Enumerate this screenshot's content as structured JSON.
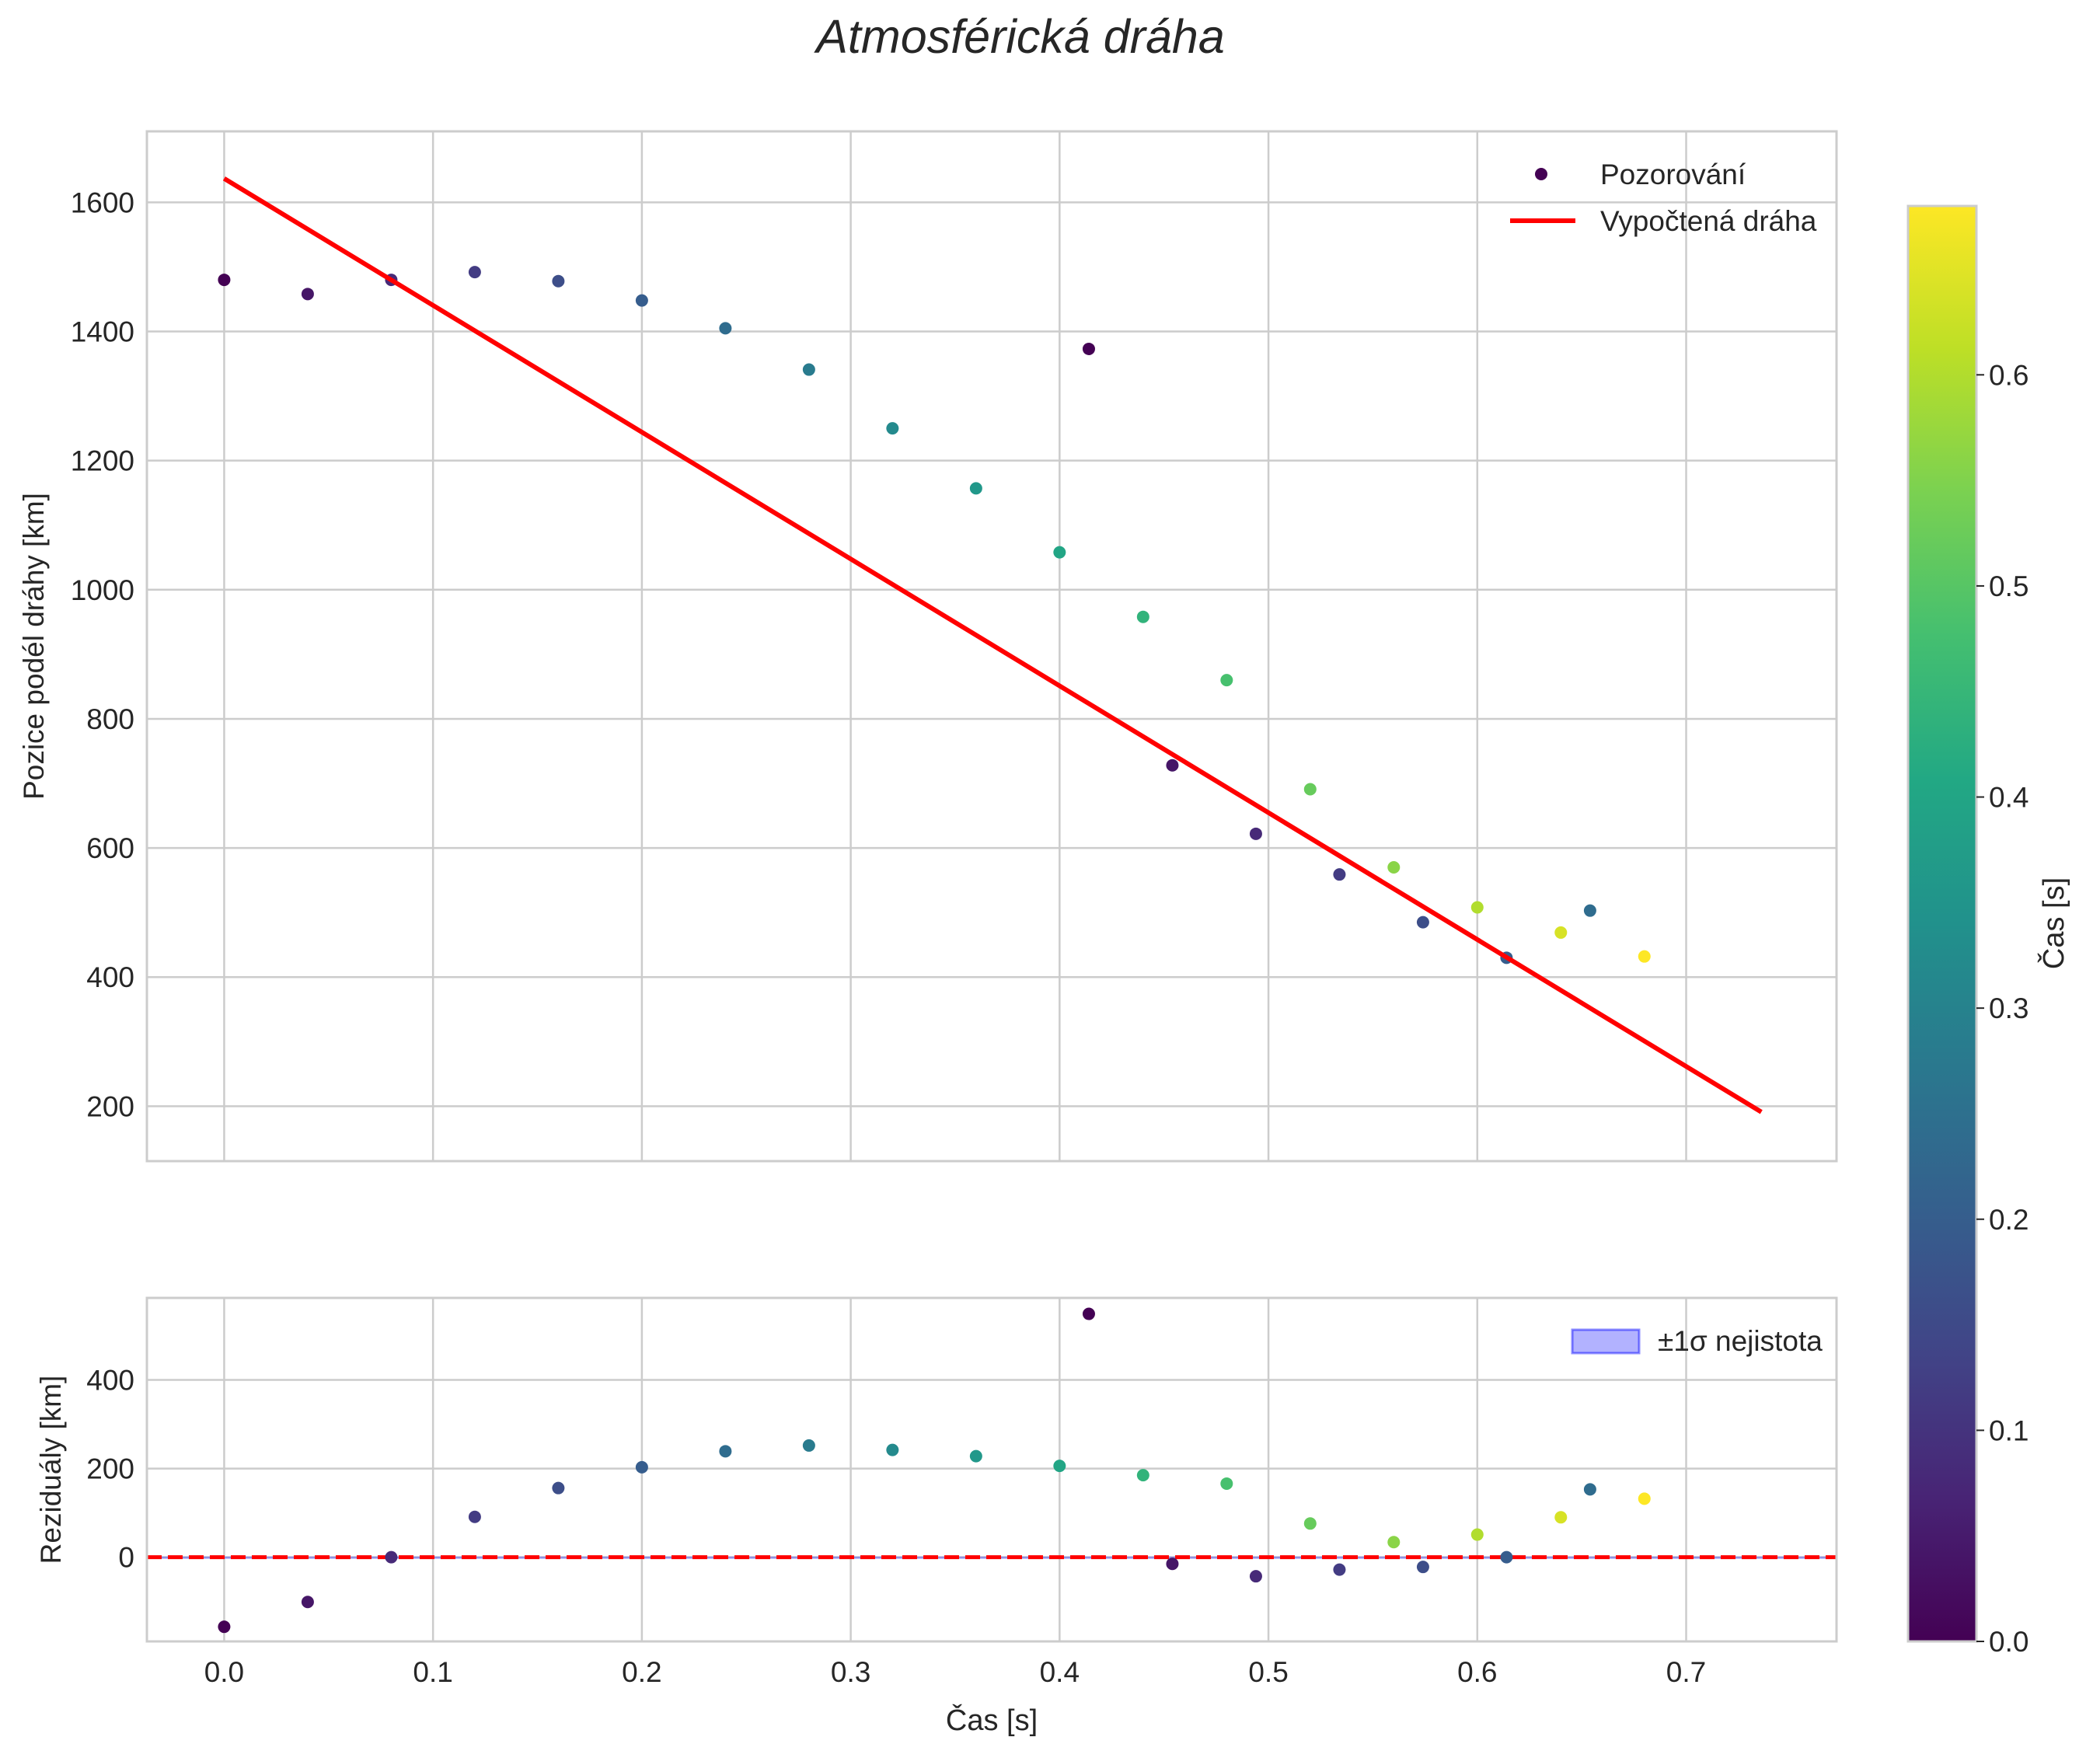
{
  "figure": {
    "title": "Atmosférická dráha"
  },
  "chart_data": [
    {
      "type": "scatter",
      "name": "trajectory",
      "ylabel": "Pozice podél dráhy [km]",
      "xlabel": "",
      "xlim": [
        -0.037,
        0.772
      ],
      "ylim": [
        115,
        1710
      ],
      "x_ticks": [
        0.0,
        0.1,
        0.2,
        0.3,
        0.4,
        0.5,
        0.6,
        0.7
      ],
      "y_ticks": [
        200,
        400,
        600,
        800,
        1000,
        1200,
        1400,
        1600
      ],
      "y_tick_labels": [
        "200",
        "400",
        "600",
        "800",
        "1000",
        "1200",
        "1400",
        "1600"
      ],
      "grid": true,
      "legend_position": "top-right",
      "legend": [
        {
          "label": "Pozorování",
          "kind": "marker",
          "color": "#440154"
        },
        {
          "label": "Vypočtená dráha",
          "kind": "line",
          "color": "#ff0000"
        }
      ],
      "series": [
        {
          "name": "Pozorování",
          "kind": "scatter",
          "colormap": "viridis",
          "points": [
            {
              "t": 0.0,
              "y": 1480,
              "c": 0.0
            },
            {
              "t": 0.04,
              "y": 1458,
              "c": 0.04
            },
            {
              "t": 0.08,
              "y": 1480,
              "c": 0.08
            },
            {
              "t": 0.12,
              "y": 1492,
              "c": 0.12
            },
            {
              "t": 0.16,
              "y": 1478,
              "c": 0.16
            },
            {
              "t": 0.2,
              "y": 1448,
              "c": 0.2
            },
            {
              "t": 0.24,
              "y": 1405,
              "c": 0.24
            },
            {
              "t": 0.28,
              "y": 1341,
              "c": 0.28
            },
            {
              "t": 0.32,
              "y": 1250,
              "c": 0.32
            },
            {
              "t": 0.36,
              "y": 1157,
              "c": 0.36
            },
            {
              "t": 0.4,
              "y": 1058,
              "c": 0.4
            },
            {
              "t": 0.44,
              "y": 958,
              "c": 0.44
            },
            {
              "t": 0.48,
              "y": 860,
              "c": 0.48
            },
            {
              "t": 0.52,
              "y": 691,
              "c": 0.52
            },
            {
              "t": 0.56,
              "y": 570,
              "c": 0.56
            },
            {
              "t": 0.6,
              "y": 508,
              "c": 0.6
            },
            {
              "t": 0.64,
              "y": 469,
              "c": 0.64
            },
            {
              "t": 0.68,
              "y": 432,
              "c": 0.68
            },
            {
              "t": 0.414,
              "y": 1373,
              "c": 0.0
            },
            {
              "t": 0.454,
              "y": 728,
              "c": 0.04
            },
            {
              "t": 0.494,
              "y": 622,
              "c": 0.08
            },
            {
              "t": 0.534,
              "y": 559,
              "c": 0.12
            },
            {
              "t": 0.574,
              "y": 485,
              "c": 0.16
            },
            {
              "t": 0.614,
              "y": 430,
              "c": 0.2
            },
            {
              "t": 0.654,
              "y": 503,
              "c": 0.24
            }
          ]
        },
        {
          "name": "Vypočtená dráha",
          "kind": "line",
          "color": "#ff0000",
          "x": [
            0.0,
            0.736
          ],
          "y": [
            1637,
            191
          ]
        }
      ]
    },
    {
      "type": "scatter",
      "name": "residuals",
      "ylabel": "Reziduály [km]",
      "xlabel": "Čas [s]",
      "xlim": [
        -0.037,
        0.772
      ],
      "ylim": [
        -190,
        585
      ],
      "x_ticks": [
        0.0,
        0.1,
        0.2,
        0.3,
        0.4,
        0.5,
        0.6,
        0.7
      ],
      "x_tick_labels": [
        "0.0",
        "0.1",
        "0.2",
        "0.3",
        "0.4",
        "0.5",
        "0.6",
        "0.7"
      ],
      "y_ticks": [
        0,
        200,
        400
      ],
      "y_tick_labels": [
        "0",
        "200",
        "400"
      ],
      "grid": true,
      "legend_position": "top-right",
      "legend": [
        {
          "label": "±1σ nejistota",
          "kind": "patch",
          "color": "#0000ff"
        }
      ],
      "reference_line": {
        "y": 0,
        "style": "dashed",
        "color": "#ff0000"
      },
      "uncertainty_band": 1.5,
      "series": [
        {
          "name": "Reziduály",
          "kind": "scatter",
          "colormap": "viridis",
          "points": [
            {
              "t": 0.0,
              "y": -157,
              "c": 0.0
            },
            {
              "t": 0.04,
              "y": -101,
              "c": 0.04
            },
            {
              "t": 0.08,
              "y": 0,
              "c": 0.08
            },
            {
              "t": 0.12,
              "y": 91,
              "c": 0.12
            },
            {
              "t": 0.16,
              "y": 156,
              "c": 0.16
            },
            {
              "t": 0.2,
              "y": 203,
              "c": 0.2
            },
            {
              "t": 0.24,
              "y": 239,
              "c": 0.24
            },
            {
              "t": 0.28,
              "y": 252,
              "c": 0.28
            },
            {
              "t": 0.32,
              "y": 242,
              "c": 0.32
            },
            {
              "t": 0.36,
              "y": 228,
              "c": 0.36
            },
            {
              "t": 0.4,
              "y": 206,
              "c": 0.4
            },
            {
              "t": 0.44,
              "y": 185,
              "c": 0.44
            },
            {
              "t": 0.48,
              "y": 166,
              "c": 0.48
            },
            {
              "t": 0.52,
              "y": 76,
              "c": 0.52
            },
            {
              "t": 0.56,
              "y": 34,
              "c": 0.56
            },
            {
              "t": 0.6,
              "y": 51,
              "c": 0.6
            },
            {
              "t": 0.64,
              "y": 90,
              "c": 0.64
            },
            {
              "t": 0.68,
              "y": 132,
              "c": 0.68
            },
            {
              "t": 0.414,
              "y": 549,
              "c": 0.0
            },
            {
              "t": 0.454,
              "y": -15,
              "c": 0.04
            },
            {
              "t": 0.494,
              "y": -43,
              "c": 0.08
            },
            {
              "t": 0.534,
              "y": -28,
              "c": 0.12
            },
            {
              "t": 0.574,
              "y": -22,
              "c": 0.16
            },
            {
              "t": 0.614,
              "y": 0,
              "c": 0.2
            },
            {
              "t": 0.654,
              "y": 153,
              "c": 0.24
            }
          ]
        }
      ]
    }
  ],
  "colorbar": {
    "label": "Čas [s]",
    "colormap": "viridis",
    "range": [
      0.0,
      0.68
    ],
    "ticks": [
      0.0,
      0.1,
      0.2,
      0.3,
      0.4,
      0.5,
      0.6
    ],
    "tick_labels": [
      "0.0",
      "0.1",
      "0.2",
      "0.3",
      "0.4",
      "0.5",
      "0.6"
    ]
  }
}
